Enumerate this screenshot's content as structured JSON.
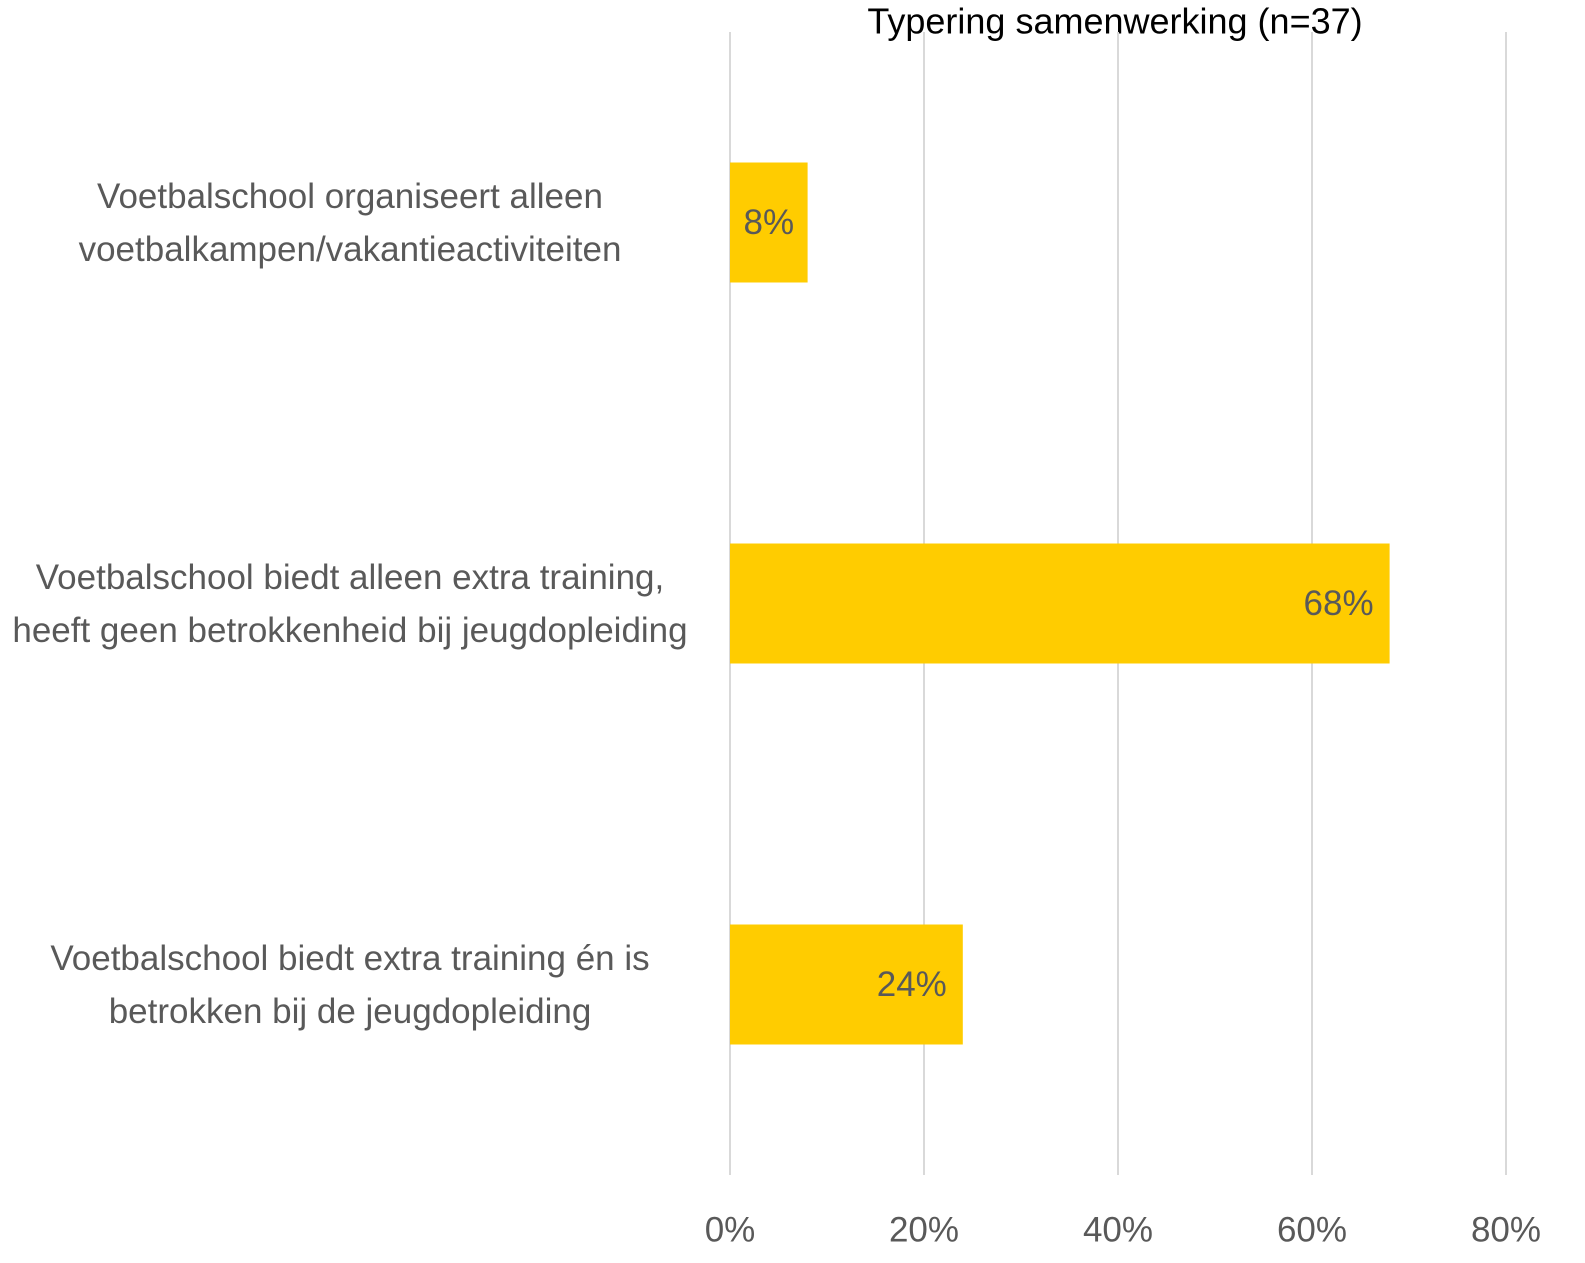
{
  "chart_data": {
    "type": "bar",
    "orientation": "horizontal",
    "title": "Typering samenwerking (n=37)",
    "categories": [
      "Voetbalschool organiseert alleen voetbalkampen/vakantieactiviteiten",
      "Voetbalschool biedt alleen extra training, heeft geen betrokkenheid bij jeugdopleiding",
      "Voetbalschool biedt extra training én is betrokken bij de jeugdopleiding"
    ],
    "values": [
      8,
      68,
      24
    ],
    "value_labels": [
      "8%",
      "68%",
      "24%"
    ],
    "color": "#ffcc00",
    "xlim": [
      0,
      80
    ],
    "xticks": [
      {
        "value": 0,
        "label": "0%"
      },
      {
        "value": 20,
        "label": "20%"
      },
      {
        "value": 40,
        "label": "40%"
      },
      {
        "value": 60,
        "label": "60%"
      },
      {
        "value": 80,
        "label": "80%"
      }
    ],
    "grid": true
  }
}
